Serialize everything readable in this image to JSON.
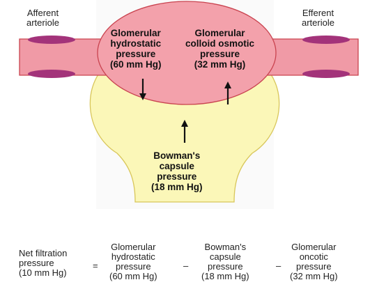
{
  "diagram": {
    "afferent_label": "Afferent\narteriole",
    "efferent_label": "Efferent\narteriole",
    "glom_hydro_label": "Glomerular\nhydrostatic\npressure\n(60 mm Hg)",
    "glom_colloid_label": "Glomerular\ncolloid osmotic\npressure\n(32 mm Hg)",
    "bowman_label": "Bowman's\ncapsule\npressure\n(18 mm Hg)"
  },
  "equation": {
    "net": "Net filtration\npressure\n(10 mm Hg)",
    "equals": "=",
    "term1": "Glomerular\nhydrostatic\npressure\n(60 mm Hg)",
    "minus1": "–",
    "term2": "Bowman's\ncapsule\npressure\n(18 mm Hg)",
    "minus2": "–",
    "term3": "Glomerular\noncotic\npressure\n(32 mm Hg)"
  },
  "colors": {
    "arteriole_fill": "#f09aa6",
    "arteriole_stroke": "#c9434f",
    "glomerulus_fill": "#f3a1ab",
    "capsule_fill": "#fbf7b8",
    "capsule_stroke": "#d8c65a",
    "rbc_fill": "#a3337a"
  }
}
